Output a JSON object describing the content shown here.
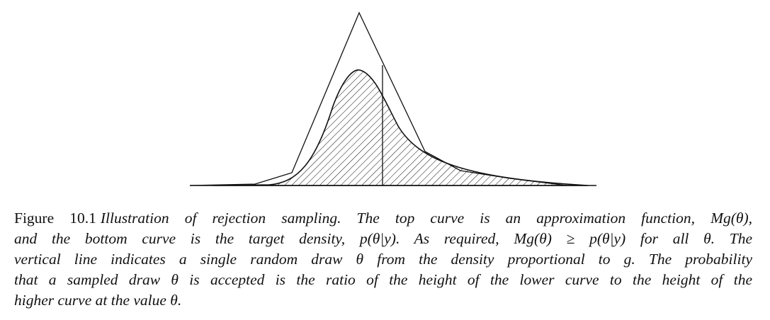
{
  "figure": {
    "label": "Figure 10.1",
    "caption_lines": [
      "Illustration of rejection sampling. The top curve is an approximation function, Mg(θ),",
      "and the bottom curve is the target density, p(θ|y). As required, Mg(θ) ≥ p(θ|y) for all θ. The",
      "vertical line indicates a single random draw θ from the density proportional to g. The probability",
      "that a sampled draw θ is accepted is the ratio of the height of the lower curve to the height of the",
      "higher curve at the value θ."
    ]
  }
}
